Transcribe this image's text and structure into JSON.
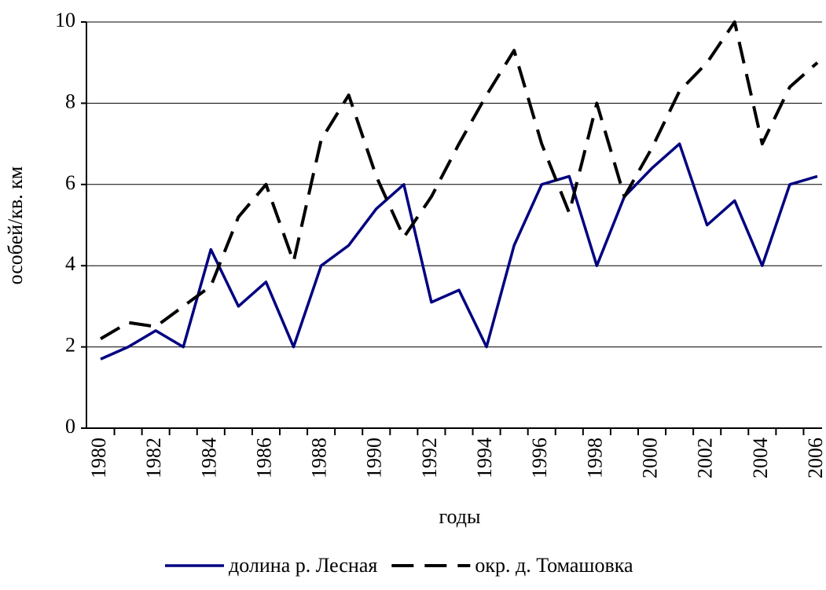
{
  "chart_data": {
    "type": "line",
    "xlabel": "годы",
    "ylabel": "особей/кв. км",
    "categories": [
      "1980",
      null,
      "1982",
      null,
      "1984",
      null,
      "1986",
      null,
      "1988",
      null,
      "1990",
      null,
      "1992",
      null,
      "1994",
      null,
      "1996",
      null,
      "1998",
      null,
      "2000",
      null,
      "2002",
      null,
      "2004",
      null,
      "2006"
    ],
    "series": [
      {
        "name": "долина р. Лесная",
        "color": "#000080",
        "style": "solid",
        "values": [
          1.7,
          2.0,
          2.4,
          2.0,
          4.4,
          3.0,
          3.6,
          2.0,
          4.0,
          4.5,
          5.4,
          6.0,
          3.1,
          3.4,
          2.0,
          4.5,
          6.0,
          6.2,
          4.0,
          5.7,
          6.4,
          7.0,
          5.0,
          5.6,
          4.0,
          6.0,
          6.2
        ]
      },
      {
        "name": "окр. д. Томашовка",
        "color": "#000000",
        "style": "dashed",
        "values": [
          2.2,
          2.6,
          2.5,
          3.0,
          3.5,
          5.2,
          6.0,
          4.1,
          7.1,
          8.2,
          6.2,
          4.7,
          5.7,
          7.0,
          8.2,
          9.3,
          7.0,
          5.3,
          8.0,
          5.7,
          6.9,
          8.3,
          9.0,
          10.0,
          7.0,
          8.4,
          9.0
        ]
      }
    ],
    "ylim": [
      0,
      10
    ],
    "yticks": [
      0,
      2,
      4,
      6,
      8,
      10
    ],
    "grid": true,
    "legend": "bottom"
  }
}
